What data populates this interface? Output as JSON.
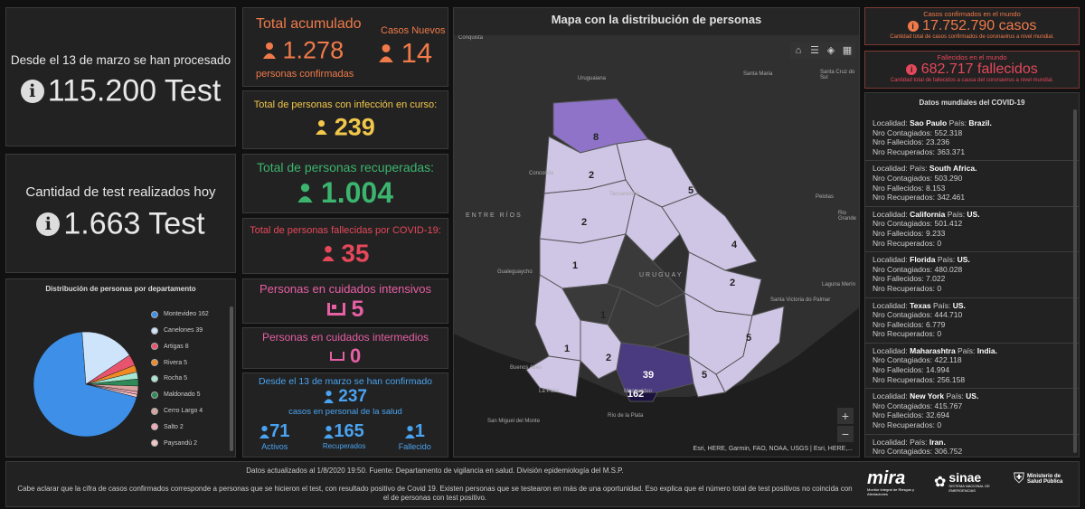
{
  "tests_processed": {
    "label": "Desde el 13 de marzo se han procesado",
    "value": "115.200 Test"
  },
  "tests_today": {
    "label": "Cantidad de test realizados hoy",
    "value": "1.663 Test"
  },
  "total": {
    "title": "Total acumulado",
    "value": "1.278",
    "sub": "personas confirmadas",
    "new_label": "Casos Nuevos",
    "new_value": "14"
  },
  "active": {
    "title": "Total de personas con infección en curso:",
    "value": "239"
  },
  "recovered": {
    "title": "Total de personas recuperadas:",
    "value": "1.004"
  },
  "deaths": {
    "title": "Total de personas fallecidas por COVID-19:",
    "value": "35"
  },
  "icu": {
    "title": "Personas en cuidados intensivos",
    "value": "5"
  },
  "intermediate": {
    "title": "Personas en cuidados intermedios",
    "value": "0"
  },
  "health": {
    "title": "Desde el 13 de marzo se han confirmado",
    "value": "237",
    "sub": "casos en personal de la salud",
    "items": [
      {
        "value": "71",
        "label": "Activos"
      },
      {
        "value": "165",
        "label": "Recuperados"
      },
      {
        "value": "1",
        "label": "Fallecido"
      }
    ]
  },
  "map": {
    "title": "Mapa con la distribución de personas",
    "attribution": "Esri, HERE, Garmin, FAO, NOAA, USGS | Esri, HERE,...",
    "counts": [
      "8",
      "2",
      "5",
      "2",
      "4",
      "1",
      "2",
      "1",
      "2",
      "1",
      "39",
      "5",
      "5",
      "162"
    ],
    "places": [
      "Conquista",
      "Uruguaiana",
      "Santa Maria",
      "Santa Cruz do Sul",
      "Concordia",
      "Tacuarembó",
      "Pelotas",
      "Rio Grande",
      "ENTRE RÍOS",
      "URUGUAY",
      "Gualeguaychú",
      "Laguna Merín",
      "Santa Victoria do Palmar",
      "Buenos Aires",
      "La Plata",
      "Montevideo",
      "Río de la Plata",
      "San Miguel del Monte"
    ]
  },
  "world_cases": {
    "title": "Casos confirmados en el mundo",
    "value": "17.752.790 casos",
    "sub": "Cantidad total de casos confirmados de coronavirus a nivel mundial."
  },
  "world_deaths": {
    "title": "Fallecidos en el mundo",
    "value": "682.717 fallecidos",
    "sub": "Cantidad total de fallecidos a causa del coronavirus a nivel mundial."
  },
  "world_list": {
    "title": "Datos mundiales del COVID-19",
    "labels": {
      "loc": "Localidad:",
      "country": "País:",
      "cont": "Nro Contagiados:",
      "fall": "Nro Fallecidos:",
      "rec": "Nro Recuperados:"
    },
    "items": [
      {
        "loc": "Sao Paulo",
        "country": "Brazil.",
        "cont": "552.318",
        "fall": "23.236",
        "rec": "363.371"
      },
      {
        "loc": "",
        "country": "South Africa.",
        "cont": "503.290",
        "fall": "8.153",
        "rec": "342.461"
      },
      {
        "loc": "California",
        "country": "US.",
        "cont": "501.412",
        "fall": "9.233",
        "rec": "0"
      },
      {
        "loc": "Florida",
        "country": "US.",
        "cont": "480.028",
        "fall": "7.022",
        "rec": "0"
      },
      {
        "loc": "Texas",
        "country": "US.",
        "cont": "444.710",
        "fall": "6.779",
        "rec": "0"
      },
      {
        "loc": "Maharashtra",
        "country": "India.",
        "cont": "422.118",
        "fall": "14.994",
        "rec": "256.158"
      },
      {
        "loc": "New York",
        "country": "US.",
        "cont": "415.767",
        "fall": "32.694",
        "rec": "0"
      },
      {
        "loc": "",
        "country": "Iran.",
        "cont": "306.752",
        "fall": "16.982",
        "rec": ""
      }
    ]
  },
  "pie": {
    "title": "Distribución de personas por departamento"
  },
  "chart_data": {
    "type": "pie",
    "title": "Distribución de personas por departamento",
    "categories": [
      "Montevideo",
      "Canelones",
      "Artigas",
      "Rivera",
      "Rocha",
      "Maldonado",
      "Cerro Largo",
      "Salto",
      "Paysandú"
    ],
    "values": [
      162,
      39,
      8,
      5,
      5,
      5,
      4,
      2,
      2
    ],
    "colors": [
      "#3d8fe8",
      "#cde4fb",
      "#e8546e",
      "#f08a24",
      "#a8e6d4",
      "#2e8b57",
      "#d9a3a0",
      "#f2a8b6",
      "#f4c6c9"
    ]
  },
  "footer": {
    "line1": "Datos actualizados al 1/8/2020 19:50. Fuente: Departamento de vigilancia en salud. División epidemiología del M.S.P.",
    "line2": "Cabe aclarar que la cifra de casos confirmados corresponde a personas que se hicieron el test, con resultado positivo de Covid 19. Existen personas que se testearon en más de una oportunidad. Eso explica que el número total de test positivos no coincida con el de personas con test positivo.",
    "logo1": "mira",
    "logo1_sub": "Monitor Integral de Riesgos y Afectaciones",
    "logo2": "sinae",
    "logo2_sub": "SISTEMA NACIONAL DE EMERGENCIAS",
    "logo3": "Ministerio de Salud Pública"
  },
  "colors": {
    "orange": "#f07a4a",
    "yellow": "#f2c84b",
    "green": "#3cb46e",
    "red": "#e5485a",
    "pink": "#e75fa4",
    "blue": "#4aa3f0"
  }
}
